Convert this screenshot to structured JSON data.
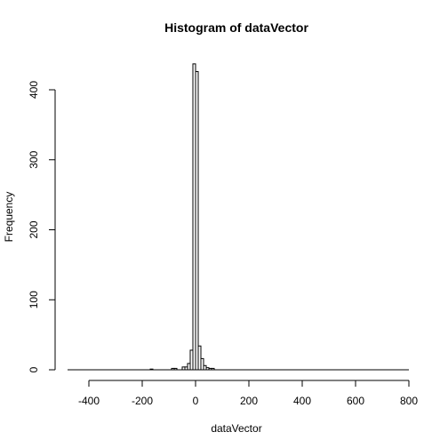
{
  "chart_data": {
    "type": "bar",
    "title": "Histogram of dataVector",
    "xlabel": "dataVector",
    "ylabel": "Frequency",
    "xlim": [
      -480,
      800
    ],
    "ylim": [
      0,
      440
    ],
    "x_ticks": [
      -400,
      -200,
      0,
      200,
      400,
      600,
      800
    ],
    "x_tick_labels": [
      "-400",
      "-200",
      "0",
      "200",
      "400",
      "600",
      "800"
    ],
    "y_ticks": [
      0,
      100,
      200,
      300,
      400
    ],
    "y_tick_labels": [
      "0",
      "100",
      "200",
      "300",
      "400"
    ],
    "bin_width": 10,
    "bars": [
      {
        "x0": -170,
        "x1": -160,
        "count": 1
      },
      {
        "x0": -90,
        "x1": -80,
        "count": 2
      },
      {
        "x0": -80,
        "x1": -70,
        "count": 2
      },
      {
        "x0": -50,
        "x1": -40,
        "count": 4
      },
      {
        "x0": -40,
        "x1": -30,
        "count": 4
      },
      {
        "x0": -30,
        "x1": -20,
        "count": 9
      },
      {
        "x0": -20,
        "x1": -10,
        "count": 28
      },
      {
        "x0": -10,
        "x1": 0,
        "count": 437
      },
      {
        "x0": 0,
        "x1": 10,
        "count": 426
      },
      {
        "x0": 10,
        "x1": 20,
        "count": 34
      },
      {
        "x0": 20,
        "x1": 30,
        "count": 16
      },
      {
        "x0": 30,
        "x1": 40,
        "count": 6
      },
      {
        "x0": 40,
        "x1": 50,
        "count": 3
      },
      {
        "x0": 50,
        "x1": 60,
        "count": 2
      },
      {
        "x0": 60,
        "x1": 70,
        "count": 2
      }
    ],
    "grid": false,
    "legend": "none"
  }
}
